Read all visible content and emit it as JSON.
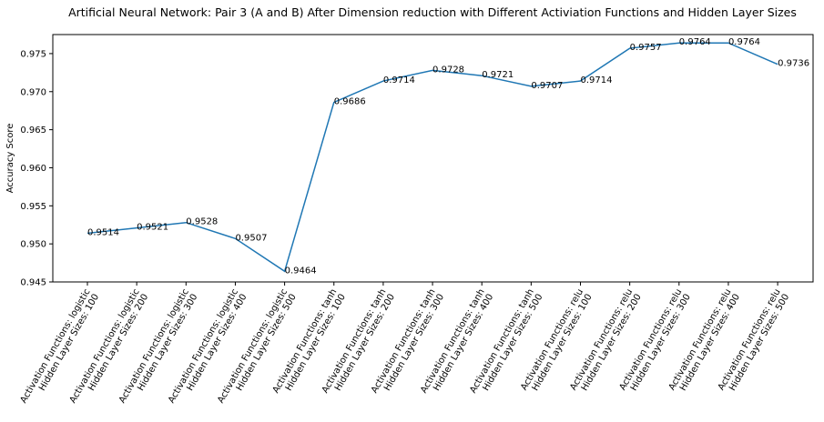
{
  "chart_data": {
    "type": "line",
    "title": "Artificial Neural Network: Pair 3 (A and B) After Dimension reduction with Different Activiation Functions and Hidden Layer Sizes",
    "xlabel": "",
    "ylabel": "Accuracy Score",
    "ylim": [
      0.945,
      0.9775
    ],
    "yticks": [
      "0.945",
      "0.950",
      "0.955",
      "0.960",
      "0.965",
      "0.970",
      "0.975"
    ],
    "grid": false,
    "line_color": "#1f77b4",
    "categories": [
      [
        "Activation Functions: logistic",
        "Hidden Layer Sizes: 100"
      ],
      [
        "Activation Functions: logistic",
        "Hidden Layer Sizes: 200"
      ],
      [
        "Activation Functions: logistic",
        "Hidden Layer Sizes: 300"
      ],
      [
        "Activation Functions: logistic",
        "Hidden Layer Sizes: 400"
      ],
      [
        "Activation Functions: logistic",
        "Hidden Layer Sizes: 500"
      ],
      [
        "Activation Functions: tanh",
        "Hidden Layer Sizes: 100"
      ],
      [
        "Activation Functions: tanh",
        "Hidden Layer Sizes: 200"
      ],
      [
        "Activation Functions: tanh",
        "Hidden Layer Sizes: 300"
      ],
      [
        "Activation Functions: tanh",
        "Hidden Layer Sizes: 400"
      ],
      [
        "Activation Functions: tanh",
        "Hidden Layer Sizes: 500"
      ],
      [
        "Activation Functions: relu",
        "Hidden Layer Sizes: 100"
      ],
      [
        "Activation Functions: relu",
        "Hidden Layer Sizes: 200"
      ],
      [
        "Activation Functions: relu",
        "Hidden Layer Sizes: 300"
      ],
      [
        "Activation Functions: relu",
        "Hidden Layer Sizes: 400"
      ],
      [
        "Activation Functions: relu",
        "Hidden Layer Sizes: 500"
      ]
    ],
    "values": [
      0.9514,
      0.9521,
      0.9528,
      0.9507,
      0.9464,
      0.9686,
      0.9714,
      0.9728,
      0.9721,
      0.9707,
      0.9714,
      0.9757,
      0.9764,
      0.9764,
      0.9736
    ],
    "data_labels": [
      "0.9514",
      "0.9521",
      "0.9528",
      "0.9507",
      "0.9464",
      "0.9686",
      "0.9714",
      "0.9728",
      "0.9721",
      "0.9707",
      "0.9714",
      "0.9757",
      "0.9764",
      "0.9764",
      "0.9736"
    ]
  }
}
